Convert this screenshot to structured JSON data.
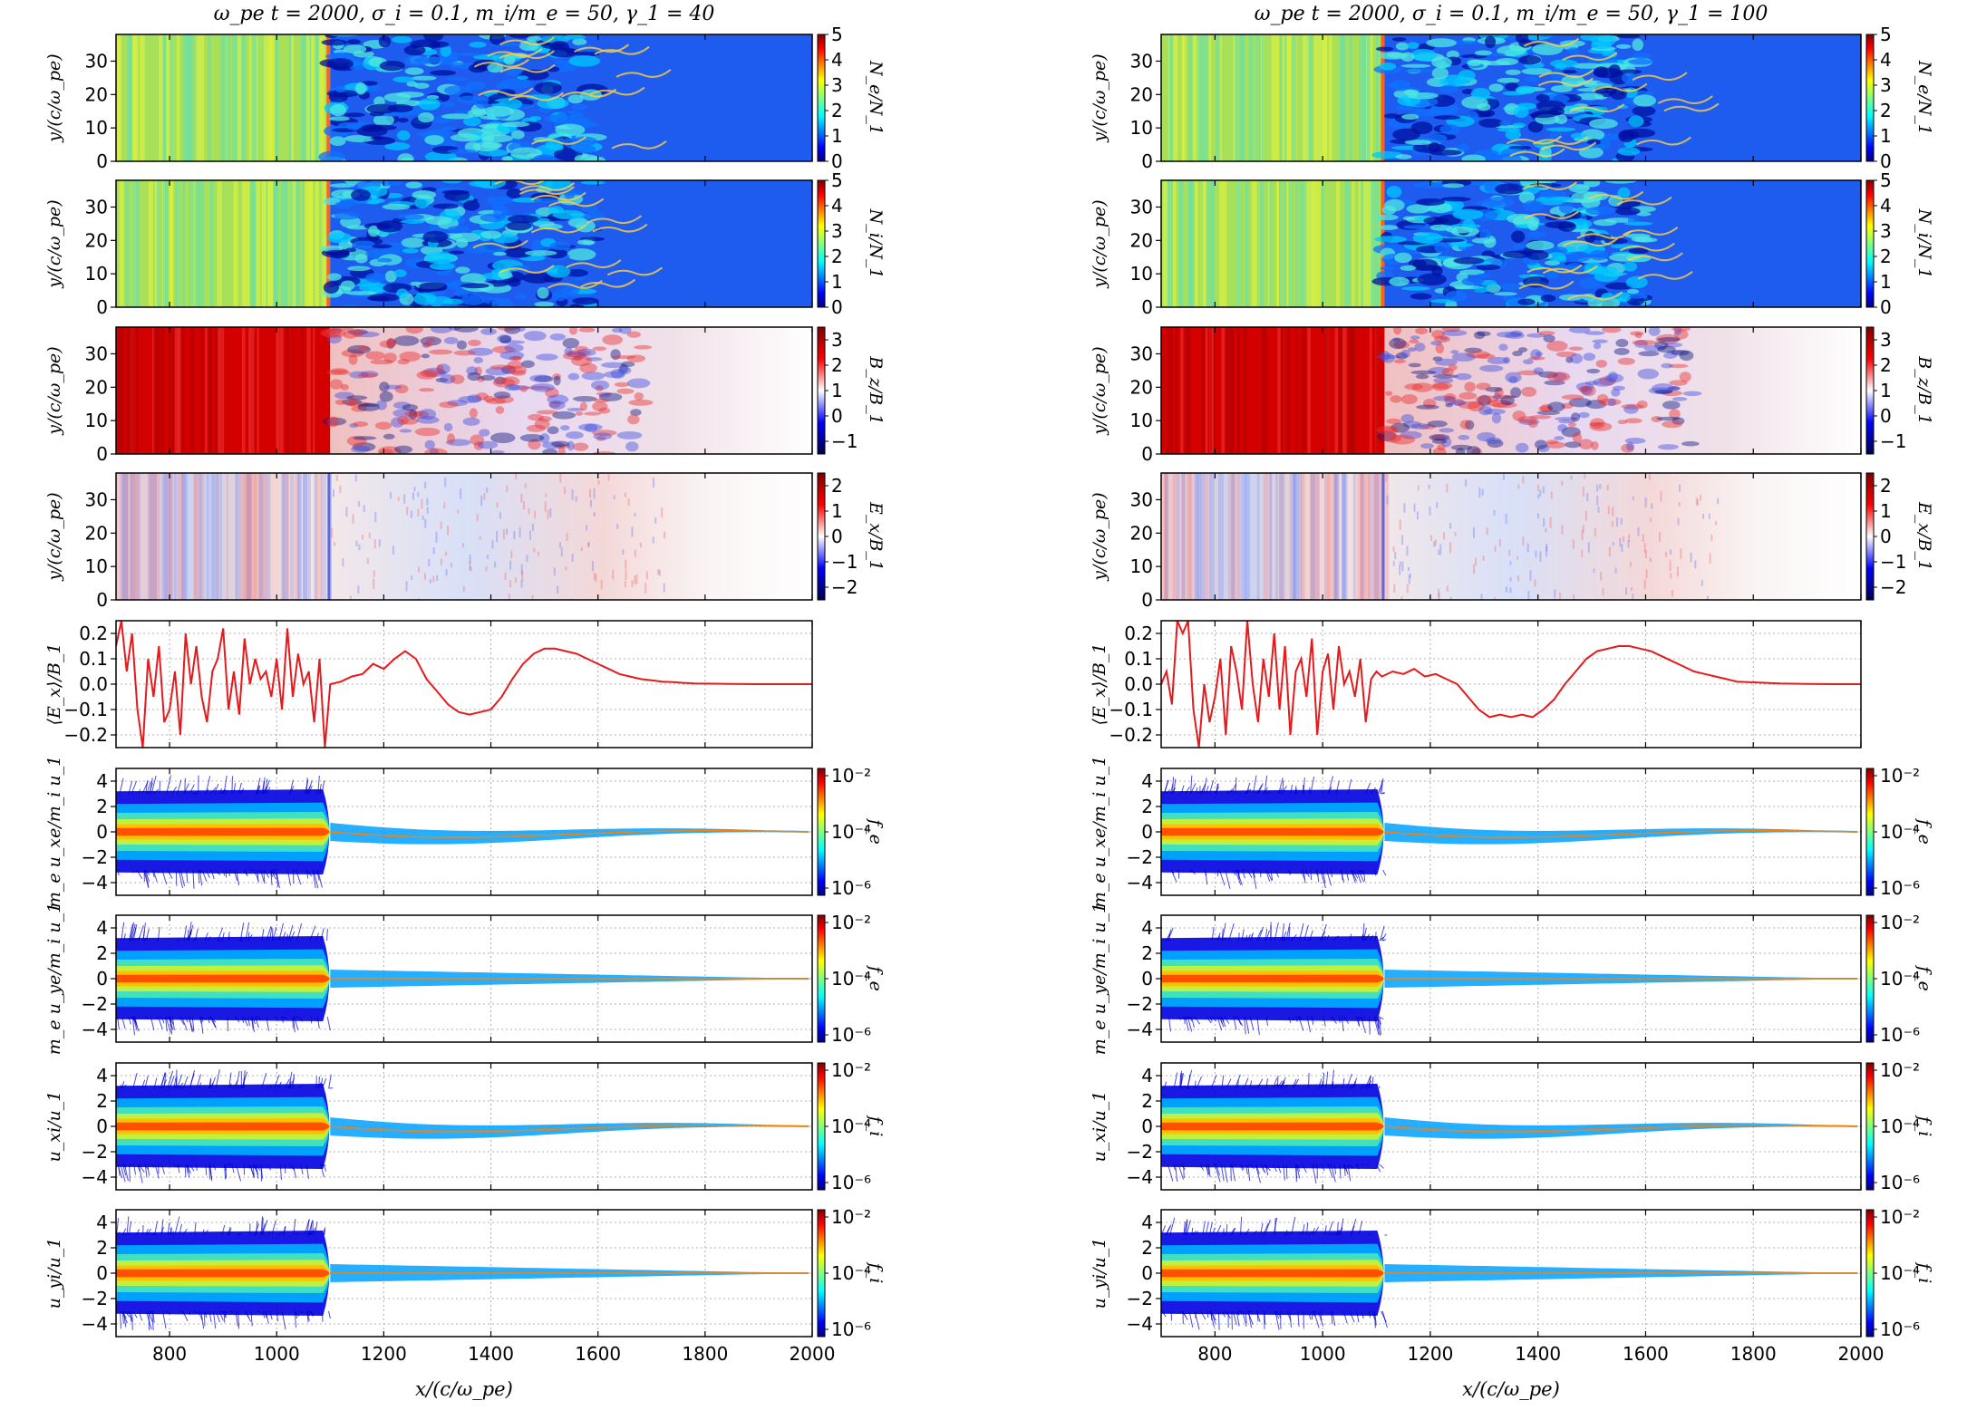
{
  "chart_data": [
    {
      "type": "heatmap-panel-figure",
      "title": "ω_pe t = 2000, σ_i = 0.1, m_i/m_e = 50, γ_1 = 40",
      "xlabel": "x/(c/ω_pe)",
      "x_ticks": [
        "800",
        "1000",
        "1200",
        "1400",
        "1600",
        "1800",
        "2000"
      ],
      "xlim": [
        700,
        2000
      ],
      "shock_x": 1100,
      "panels": [
        {
          "type": "heatmap",
          "quantity": "Ne",
          "ylabel": "y/(c/ω_pe)",
          "y_ticks": [
            "0",
            "10",
            "20",
            "30"
          ],
          "ylim": [
            0,
            38
          ],
          "colorbar_label": "N_e/N_1",
          "cbar_ticks": [
            "0",
            "1",
            "2",
            "3",
            "4",
            "5"
          ],
          "colormap": "jet"
        },
        {
          "type": "heatmap",
          "quantity": "Ni",
          "ylabel": "y/(c/ω_pe)",
          "y_ticks": [
            "0",
            "10",
            "20",
            "30"
          ],
          "ylim": [
            0,
            38
          ],
          "colorbar_label": "N_i/N_1",
          "cbar_ticks": [
            "0",
            "1",
            "2",
            "3",
            "4",
            "5"
          ],
          "colormap": "jet"
        },
        {
          "type": "heatmap",
          "quantity": "Bz",
          "ylabel": "y/(c/ω_pe)",
          "y_ticks": [
            "0",
            "10",
            "20",
            "30"
          ],
          "ylim": [
            0,
            38
          ],
          "colorbar_label": "B_z/B_1",
          "cbar_ticks": [
            "−1",
            "0",
            "1",
            "2",
            "3"
          ],
          "colormap": "seismic"
        },
        {
          "type": "heatmap",
          "quantity": "Ex",
          "ylabel": "y/(c/ω_pe)",
          "y_ticks": [
            "0",
            "10",
            "20",
            "30"
          ],
          "ylim": [
            0,
            38
          ],
          "colorbar_label": "E_x/B_1",
          "cbar_ticks": [
            "−2",
            "−1",
            "0",
            "1",
            "2"
          ],
          "colormap": "seismic"
        },
        {
          "type": "line",
          "quantity": "<Ex>",
          "ylabel": "⟨E_x⟩/B_1",
          "y_ticks": [
            "−0.2",
            "−0.1",
            "0.0",
            "0.1",
            "0.2"
          ],
          "ylim": [
            -0.25,
            0.25
          ],
          "color": "#e41a1c",
          "x": [
            700,
            710,
            720,
            730,
            740,
            750,
            760,
            770,
            780,
            790,
            800,
            810,
            820,
            830,
            840,
            850,
            860,
            870,
            880,
            890,
            900,
            910,
            920,
            930,
            940,
            950,
            960,
            970,
            980,
            990,
            1000,
            1010,
            1020,
            1030,
            1040,
            1050,
            1060,
            1070,
            1080,
            1090,
            1100,
            1120,
            1140,
            1160,
            1180,
            1200,
            1220,
            1240,
            1260,
            1280,
            1300,
            1320,
            1340,
            1360,
            1380,
            1400,
            1420,
            1440,
            1460,
            1480,
            1500,
            1520,
            1540,
            1560,
            1580,
            1600,
            1620,
            1640,
            1660,
            1680,
            1700,
            1720,
            1740,
            1760,
            1780,
            1800,
            1850,
            1900,
            1950,
            2000
          ],
          "y": [
            0.15,
            0.25,
            0.05,
            0.2,
            -0.1,
            -0.25,
            0.1,
            -0.05,
            0.15,
            -0.15,
            -0.1,
            0.05,
            -0.2,
            0.2,
            0.0,
            0.15,
            -0.05,
            -0.15,
            0.05,
            0.1,
            0.22,
            -0.1,
            0.05,
            -0.12,
            0.18,
            0.0,
            0.1,
            0.02,
            0.05,
            -0.05,
            0.1,
            -0.1,
            0.22,
            -0.05,
            0.12,
            0.0,
            0.05,
            -0.15,
            0.1,
            -0.25,
            0.0,
            0.01,
            0.03,
            0.04,
            0.08,
            0.06,
            0.1,
            0.13,
            0.1,
            0.02,
            -0.03,
            -0.08,
            -0.11,
            -0.12,
            -0.11,
            -0.1,
            -0.05,
            0.02,
            0.08,
            0.12,
            0.14,
            0.14,
            0.13,
            0.12,
            0.1,
            0.08,
            0.06,
            0.04,
            0.03,
            0.02,
            0.015,
            0.01,
            0.008,
            0.005,
            0.003,
            0.002,
            0.001,
            0.0,
            0.0,
            0.0
          ]
        },
        {
          "type": "phase-space",
          "quantity": "fe",
          "ylabel": "m_e u_xe/m_i u_1",
          "y_ticks": [
            "−4",
            "−2",
            "0",
            "2",
            "4"
          ],
          "ylim": [
            -5,
            5
          ],
          "colorbar_label": "f_e",
          "cbar_ticks": [
            "10⁻⁶",
            "10⁻⁴",
            "10⁻²"
          ],
          "colormap": "jet"
        },
        {
          "type": "phase-space",
          "quantity": "fe",
          "ylabel": "m_e u_ye/m_i u_1",
          "y_ticks": [
            "−4",
            "−2",
            "0",
            "2",
            "4"
          ],
          "ylim": [
            -5,
            5
          ],
          "colorbar_label": "f_e",
          "cbar_ticks": [
            "10⁻⁶",
            "10⁻⁴",
            "10⁻²"
          ],
          "colormap": "jet"
        },
        {
          "type": "phase-space",
          "quantity": "fi",
          "ylabel": "u_xi/u_1",
          "y_ticks": [
            "−4",
            "−2",
            "0",
            "2",
            "4"
          ],
          "ylim": [
            -5,
            5
          ],
          "colorbar_label": "f_i",
          "cbar_ticks": [
            "10⁻⁶",
            "10⁻⁴",
            "10⁻²"
          ],
          "colormap": "jet"
        },
        {
          "type": "phase-space",
          "quantity": "fi",
          "ylabel": "u_yi/u_1",
          "y_ticks": [
            "−4",
            "−2",
            "0",
            "2",
            "4"
          ],
          "ylim": [
            -5,
            5
          ],
          "colorbar_label": "f_i",
          "cbar_ticks": [
            "10⁻⁶",
            "10⁻⁴",
            "10⁻²"
          ],
          "colormap": "jet"
        }
      ]
    },
    {
      "type": "heatmap-panel-figure",
      "title": "ω_pe t = 2000, σ_i = 0.1, m_i/m_e = 50, γ_1 = 100",
      "xlabel": "x/(c/ω_pe)",
      "x_ticks": [
        "800",
        "1000",
        "1200",
        "1400",
        "1600",
        "1800",
        "2000"
      ],
      "xlim": [
        700,
        2000
      ],
      "shock_x": 1115,
      "panels": [
        {
          "type": "heatmap",
          "quantity": "Ne",
          "ylabel": "y/(c/ω_pe)",
          "y_ticks": [
            "0",
            "10",
            "20",
            "30"
          ],
          "ylim": [
            0,
            38
          ],
          "colorbar_label": "N_e/N_1",
          "cbar_ticks": [
            "0",
            "1",
            "2",
            "3",
            "4",
            "5"
          ],
          "colormap": "jet"
        },
        {
          "type": "heatmap",
          "quantity": "Ni",
          "ylabel": "y/(c/ω_pe)",
          "y_ticks": [
            "0",
            "10",
            "20",
            "30"
          ],
          "ylim": [
            0,
            38
          ],
          "colorbar_label": "N_i/N_1",
          "cbar_ticks": [
            "0",
            "1",
            "2",
            "3",
            "4",
            "5"
          ],
          "colormap": "jet"
        },
        {
          "type": "heatmap",
          "quantity": "Bz",
          "ylabel": "y/(c/ω_pe)",
          "y_ticks": [
            "0",
            "10",
            "20",
            "30"
          ],
          "ylim": [
            0,
            38
          ],
          "colorbar_label": "B_z/B_1",
          "cbar_ticks": [
            "−1",
            "0",
            "1",
            "2",
            "3"
          ],
          "colormap": "seismic"
        },
        {
          "type": "heatmap",
          "quantity": "Ex",
          "ylabel": "y/(c/ω_pe)",
          "y_ticks": [
            "0",
            "10",
            "20",
            "30"
          ],
          "ylim": [
            0,
            38
          ],
          "colorbar_label": "E_x/B_1",
          "cbar_ticks": [
            "−2",
            "−1",
            "0",
            "1",
            "2"
          ],
          "colormap": "seismic"
        },
        {
          "type": "line",
          "quantity": "<Ex>",
          "ylabel": "⟨E_x⟩/B_1",
          "y_ticks": [
            "−0.2",
            "−0.1",
            "0.0",
            "0.1",
            "0.2"
          ],
          "ylim": [
            -0.25,
            0.25
          ],
          "color": "#e41a1c",
          "x": [
            700,
            710,
            720,
            730,
            740,
            750,
            760,
            770,
            780,
            790,
            800,
            810,
            820,
            830,
            840,
            850,
            860,
            870,
            880,
            890,
            900,
            910,
            920,
            930,
            940,
            950,
            960,
            970,
            980,
            990,
            1000,
            1010,
            1020,
            1030,
            1040,
            1050,
            1060,
            1070,
            1080,
            1090,
            1100,
            1110,
            1130,
            1150,
            1170,
            1190,
            1210,
            1230,
            1250,
            1270,
            1290,
            1310,
            1330,
            1350,
            1370,
            1390,
            1410,
            1430,
            1450,
            1470,
            1490,
            1510,
            1530,
            1550,
            1570,
            1590,
            1610,
            1630,
            1650,
            1670,
            1690,
            1710,
            1730,
            1750,
            1770,
            1790,
            1850,
            1900,
            1950,
            2000
          ],
          "y": [
            0.0,
            0.05,
            -0.08,
            0.25,
            0.2,
            0.25,
            -0.1,
            -0.25,
            0.0,
            -0.15,
            -0.05,
            0.1,
            -0.2,
            0.15,
            0.05,
            -0.1,
            0.25,
            0.0,
            -0.15,
            0.1,
            -0.05,
            0.2,
            -0.1,
            0.15,
            -0.2,
            0.05,
            0.1,
            -0.05,
            0.18,
            -0.2,
            0.05,
            0.12,
            -0.1,
            0.15,
            0.0,
            0.05,
            -0.05,
            0.1,
            -0.15,
            0.02,
            0.05,
            0.03,
            0.05,
            0.04,
            0.06,
            0.03,
            0.04,
            0.02,
            0.0,
            -0.05,
            -0.1,
            -0.13,
            -0.12,
            -0.13,
            -0.12,
            -0.13,
            -0.1,
            -0.06,
            0.0,
            0.05,
            0.1,
            0.13,
            0.14,
            0.15,
            0.15,
            0.14,
            0.13,
            0.11,
            0.09,
            0.07,
            0.05,
            0.04,
            0.03,
            0.02,
            0.01,
            0.008,
            0.003,
            0.001,
            0.0,
            0.0
          ]
        },
        {
          "type": "phase-space",
          "quantity": "fe",
          "ylabel": "m_e u_xe/m_i u_1",
          "y_ticks": [
            "−4",
            "−2",
            "0",
            "2",
            "4"
          ],
          "ylim": [
            -5,
            5
          ],
          "colorbar_label": "f_e",
          "cbar_ticks": [
            "10⁻⁶",
            "10⁻⁴",
            "10⁻²"
          ],
          "colormap": "jet"
        },
        {
          "type": "phase-space",
          "quantity": "fe",
          "ylabel": "m_e u_ye/m_i u_1",
          "y_ticks": [
            "−4",
            "−2",
            "0",
            "2",
            "4"
          ],
          "ylim": [
            -5,
            5
          ],
          "colorbar_label": "f_e",
          "cbar_ticks": [
            "10⁻⁶",
            "10⁻⁴",
            "10⁻²"
          ],
          "colormap": "jet"
        },
        {
          "type": "phase-space",
          "quantity": "fi",
          "ylabel": "u_xi/u_1",
          "y_ticks": [
            "−4",
            "−2",
            "0",
            "2",
            "4"
          ],
          "ylim": [
            -5,
            5
          ],
          "colorbar_label": "f_i",
          "cbar_ticks": [
            "10⁻⁶",
            "10⁻⁴",
            "10⁻²"
          ],
          "colormap": "jet"
        },
        {
          "type": "phase-space",
          "quantity": "fi",
          "ylabel": "u_yi/u_1",
          "y_ticks": [
            "−4",
            "−2",
            "0",
            "2",
            "4"
          ],
          "ylim": [
            -5,
            5
          ],
          "colorbar_label": "f_i",
          "cbar_ticks": [
            "10⁻⁶",
            "10⁻⁴",
            "10⁻²"
          ],
          "colormap": "jet"
        }
      ]
    }
  ]
}
